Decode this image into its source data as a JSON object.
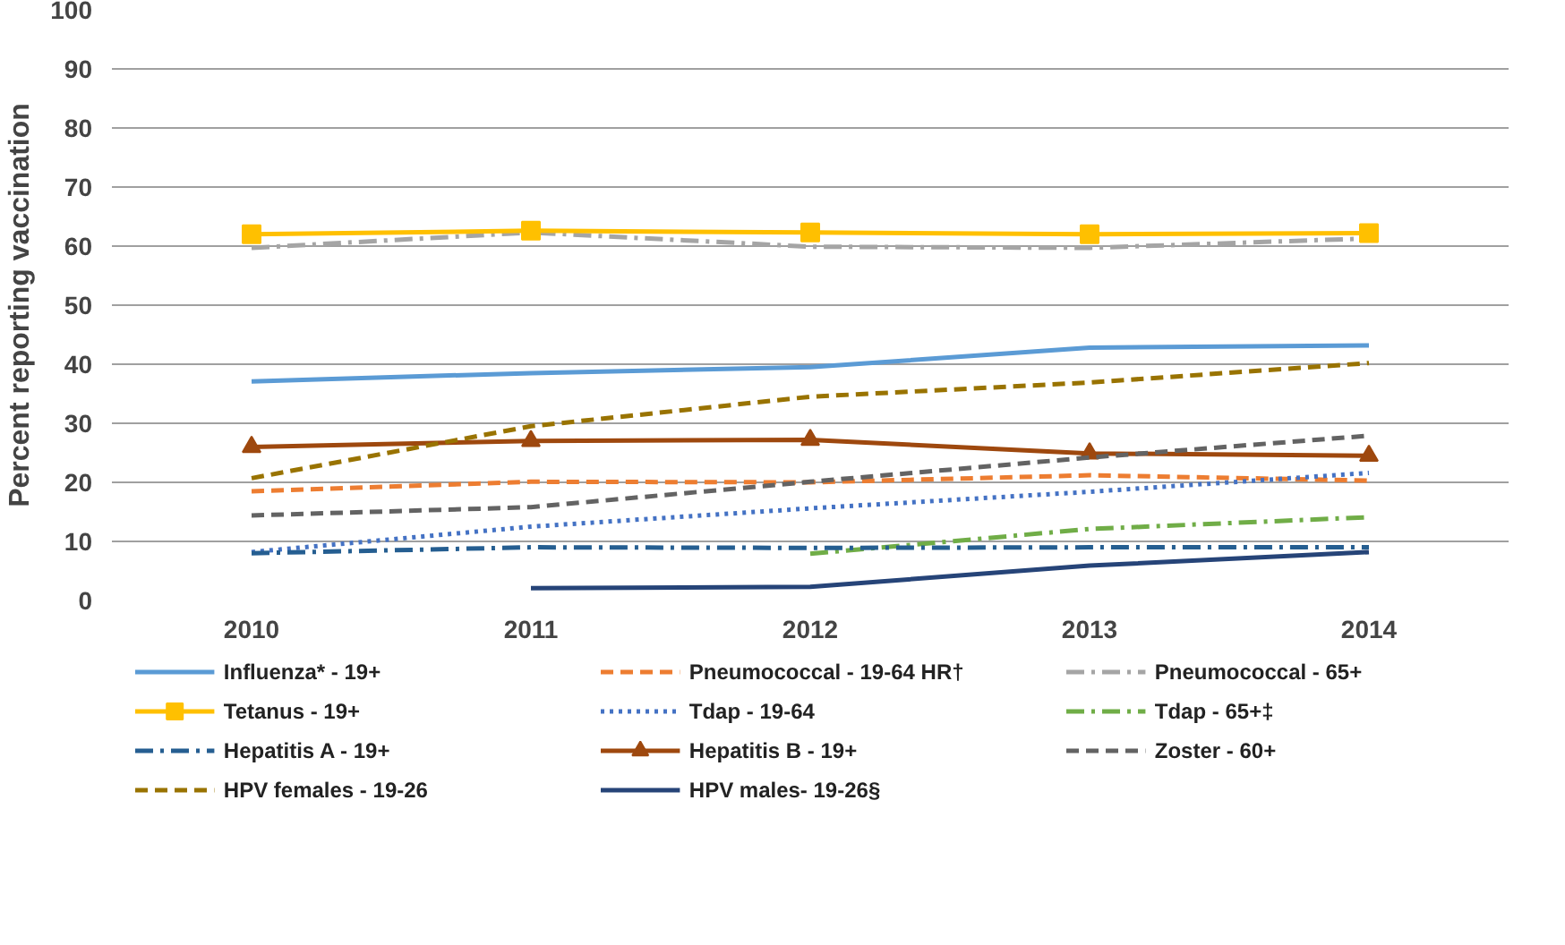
{
  "chart_data": {
    "type": "line",
    "ylabel": "Percent reporting vaccination",
    "x": [
      2010,
      2011,
      2012,
      2013,
      2014
    ],
    "xlim": [
      2009.5,
      2014.5
    ],
    "xticks": [
      2010,
      2011,
      2012,
      2013,
      2014
    ],
    "ylim": [
      0,
      100
    ],
    "yticks": [
      0,
      10,
      20,
      30,
      40,
      50,
      60,
      70,
      80,
      90,
      100
    ],
    "grid": "y",
    "legend": "bottom",
    "series": [
      {
        "name": "Influenza* - 19+",
        "color": "#5b9bd5",
        "line_style": "solid",
        "values": [
          37.1,
          38.5,
          39.5,
          42.8,
          43.2
        ]
      },
      {
        "name": "Pneumococcal - 19-64 HR†",
        "color": "#ed7d31",
        "line_style": "dashed",
        "values": [
          18.5,
          20.1,
          20.0,
          21.2,
          20.3
        ]
      },
      {
        "name": "Pneumococcal - 65+",
        "color": "#a5a5a5",
        "line_style": "dashdot",
        "values": [
          59.7,
          62.3,
          59.9,
          59.7,
          61.3
        ]
      },
      {
        "name": "Tetanus - 19+",
        "color": "#ffc000",
        "line_style": "solid",
        "marker": "square",
        "values": [
          62.0,
          62.6,
          62.3,
          62.0,
          62.2
        ]
      },
      {
        "name": "Tdap - 19-64",
        "color": "#4472c4",
        "line_style": "dotted",
        "values": [
          8.2,
          12.5,
          15.6,
          18.4,
          21.6
        ]
      },
      {
        "name": "Tdap - 65+‡",
        "color": "#70ad47",
        "line_style": "dashdot",
        "values": [
          null,
          null,
          7.9,
          12.1,
          14.1
        ]
      },
      {
        "name": "Hepatitis A - 19+",
        "color": "#255e91",
        "line_style": "dashdot",
        "values": [
          8.0,
          9.0,
          8.9,
          9.0,
          9.0
        ]
      },
      {
        "name": "Hepatitis B - 19+",
        "color": "#9e480e",
        "line_style": "solid",
        "marker": "triangle",
        "values": [
          26.0,
          27.0,
          27.2,
          24.9,
          24.5
        ]
      },
      {
        "name": "Zoster - 60+",
        "color": "#636363",
        "line_style": "dashed",
        "values": [
          14.4,
          15.8,
          20.1,
          24.2,
          27.9
        ]
      },
      {
        "name": "HPV females - 19-26",
        "color": "#997300",
        "line_style": "dashed",
        "values": [
          20.7,
          29.5,
          34.5,
          36.9,
          40.2
        ]
      },
      {
        "name": "HPV males- 19-26§",
        "color": "#264478",
        "line_style": "solid",
        "values": [
          null,
          2.1,
          2.3,
          5.9,
          8.2
        ]
      }
    ]
  }
}
